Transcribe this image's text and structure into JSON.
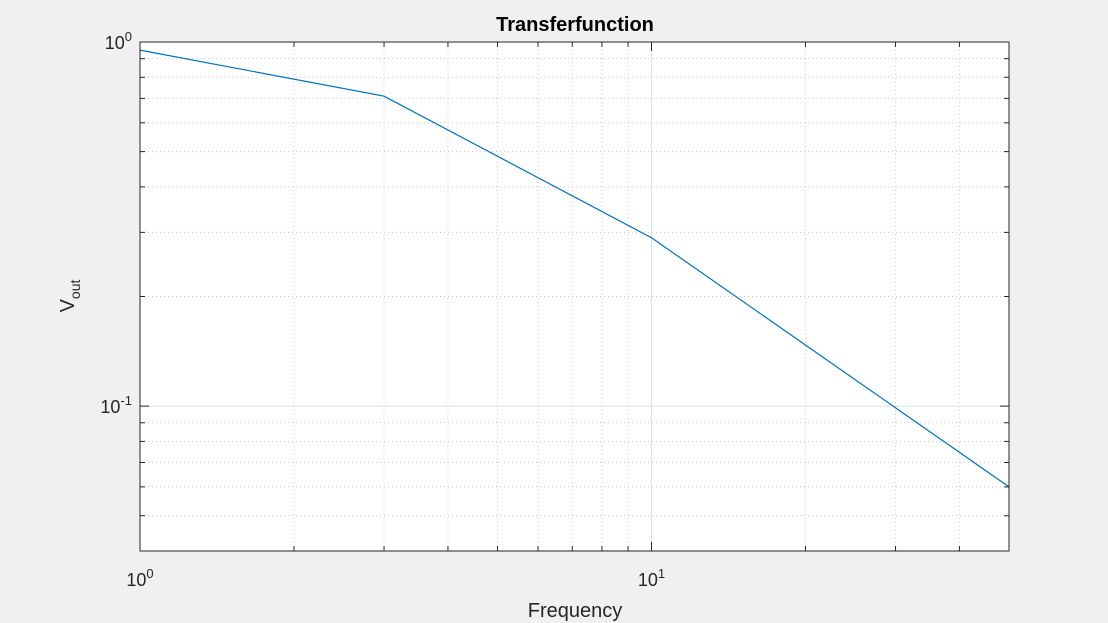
{
  "chart_data": {
    "type": "line",
    "title": "Transferfunction",
    "xlabel": "Frequency",
    "ylabel": {
      "base": "V",
      "subscript": "out"
    },
    "xscale": "log",
    "yscale": "log",
    "xlim": [
      1,
      50
    ],
    "ylim": [
      0.04,
      1
    ],
    "grid": true,
    "minor_grid": true,
    "x_tick_labels": [
      {
        "value": 1,
        "base": "10",
        "exp": "0"
      },
      {
        "value": 10,
        "base": "10",
        "exp": "1"
      }
    ],
    "y_tick_labels": [
      {
        "value": 0.1,
        "base": "10",
        "exp": "-1"
      },
      {
        "value": 1,
        "base": "10",
        "exp": "0"
      }
    ],
    "series": [
      {
        "color": "#0072bd",
        "x": [
          1,
          3,
          10,
          50
        ],
        "y": [
          0.95,
          0.71,
          0.29,
          0.06
        ]
      }
    ],
    "colors": {
      "figure_bg": "#f0f0f0",
      "axes_bg": "#ffffff",
      "axis": "#262626",
      "grid": "#dfdfdf"
    }
  }
}
